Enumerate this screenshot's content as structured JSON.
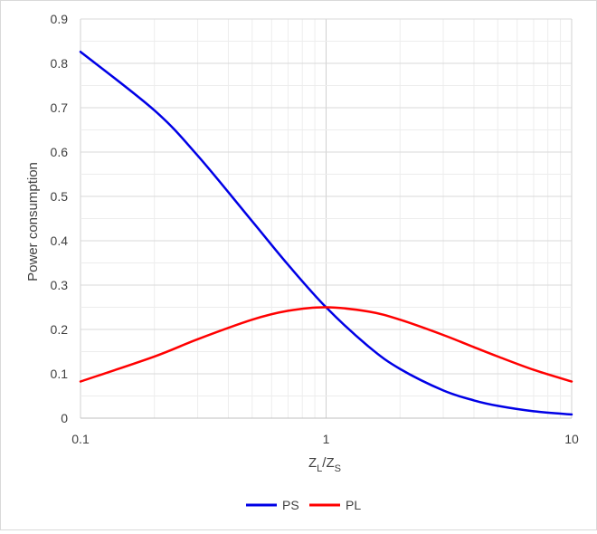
{
  "chart_data": {
    "type": "line",
    "ylabel": "Power consumption",
    "xlabel": {
      "main": "Z",
      "sub1": "L",
      "slash": "/",
      "main2": "Z",
      "sub2": "S"
    },
    "x_scale": "log",
    "xlim": [
      0.1,
      10
    ],
    "ylim": [
      0,
      0.9
    ],
    "x_ticks": [
      0.1,
      1,
      10
    ],
    "x_tick_labels": [
      "0.1",
      "1",
      "10"
    ],
    "y_ticks": [
      0,
      0.1,
      0.2,
      0.3,
      0.4,
      0.5,
      0.6,
      0.7,
      0.8,
      0.9
    ],
    "y_tick_labels": [
      "0",
      "0.1",
      "0.2",
      "0.3",
      "0.4",
      "0.5",
      "0.6",
      "0.7",
      "0.8",
      "0.9"
    ],
    "grid": true,
    "legend_position": "bottom",
    "series": [
      {
        "name": "PS",
        "color": "#0000e6",
        "x": [
          0.1,
          0.2,
          0.3,
          0.5,
          0.7,
          1,
          1.5,
          2,
          3,
          4,
          5,
          7,
          10
        ],
        "y": [
          0.826,
          0.694,
          0.592,
          0.444,
          0.346,
          0.25,
          0.16,
          0.111,
          0.0625,
          0.04,
          0.0278,
          0.0156,
          0.0083
        ]
      },
      {
        "name": "PL",
        "color": "#ff0000",
        "x": [
          0.1,
          0.2,
          0.3,
          0.5,
          0.7,
          1,
          1.5,
          2,
          3,
          4,
          5,
          7,
          10
        ],
        "y": [
          0.0826,
          0.139,
          0.178,
          0.222,
          0.242,
          0.25,
          0.24,
          0.222,
          0.1875,
          0.16,
          0.139,
          0.109,
          0.0826
        ]
      }
    ]
  }
}
